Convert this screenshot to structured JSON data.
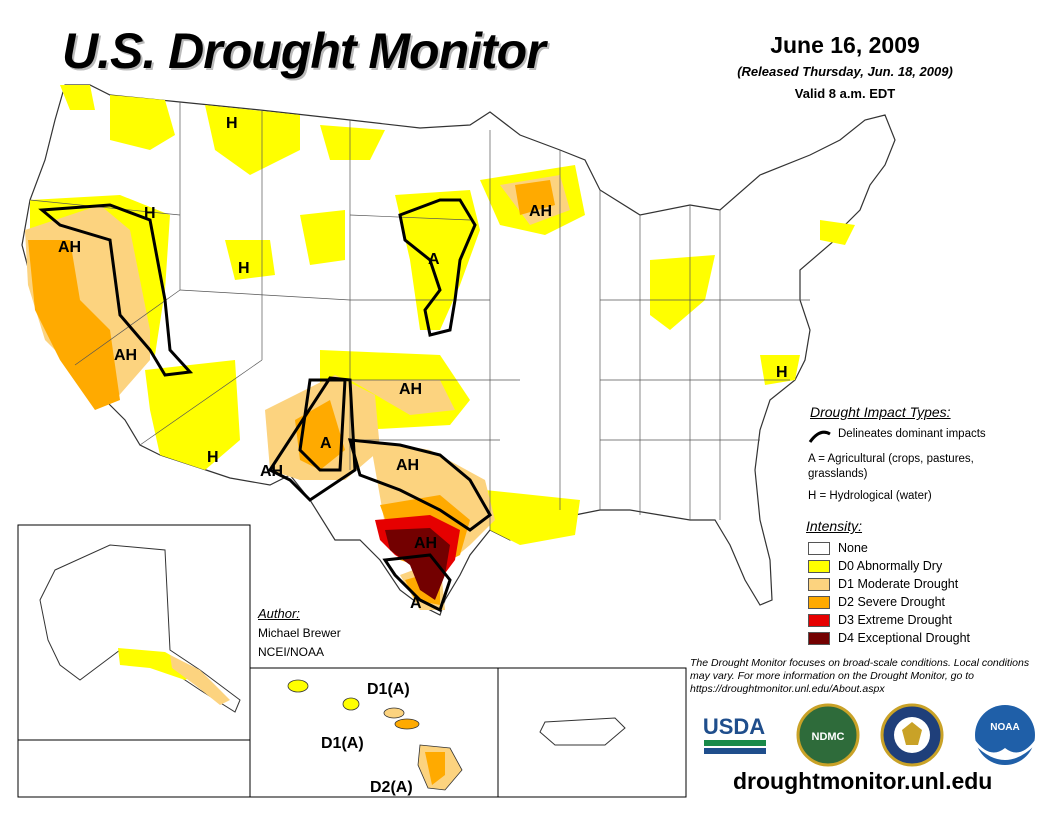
{
  "header": {
    "title": "U.S. Drought Monitor",
    "date": "June 16, 2009",
    "released": "(Released Thursday, Jun. 18, 2009)",
    "valid": "Valid 8 a.m. EDT"
  },
  "map_labels": {
    "h_montana": "H",
    "h_idaho": "H",
    "ah_oregon": "AH",
    "h_wyoming": "H",
    "ah_nevada": "AH",
    "a_nebraska": "A",
    "ah_wisconsin": "AH",
    "ah_kansas": "AH",
    "a_newmexico": "A",
    "ah_texaswest": "AH",
    "ah_texasnorth": "AH",
    "h_arizona": "H",
    "ah_texascentral": "AH",
    "a_texassouth": "A",
    "h_carolina": "H"
  },
  "insets": {
    "hawaii": [
      "D1(A)",
      "D1(A)",
      "D2(A)"
    ]
  },
  "impact_legend": {
    "heading": "Drought Impact Types:",
    "line_desc": "Delineates dominant impacts",
    "agricultural": "A = Agricultural (crops, pastures, grasslands)",
    "hydrological": "H = Hydrological (water)"
  },
  "intensity_legend": {
    "heading": "Intensity:",
    "items": [
      {
        "label": "None",
        "color": "#ffffff"
      },
      {
        "label": "D0 Abnormally Dry",
        "color": "#ffff00"
      },
      {
        "label": "D1 Moderate Drought",
        "color": "#fcd37f"
      },
      {
        "label": "D2 Severe Drought",
        "color": "#ffaa00"
      },
      {
        "label": "D3 Extreme Drought",
        "color": "#e60000"
      },
      {
        "label": "D4 Exceptional Drought",
        "color": "#730000"
      }
    ]
  },
  "author": {
    "heading": "Author:",
    "name": "Michael Brewer",
    "org": "NCEI/NOAA"
  },
  "note": "The Drought Monitor focuses on broad-scale conditions. Local conditions may vary. For more information on the Drought Monitor, go to https://droughtmonitor.unl.edu/About.aspx",
  "logos": {
    "usda": "USDA",
    "ndmc": "NDMC",
    "noaa": "NOAA"
  },
  "url": "droughtmonitor.unl.edu"
}
